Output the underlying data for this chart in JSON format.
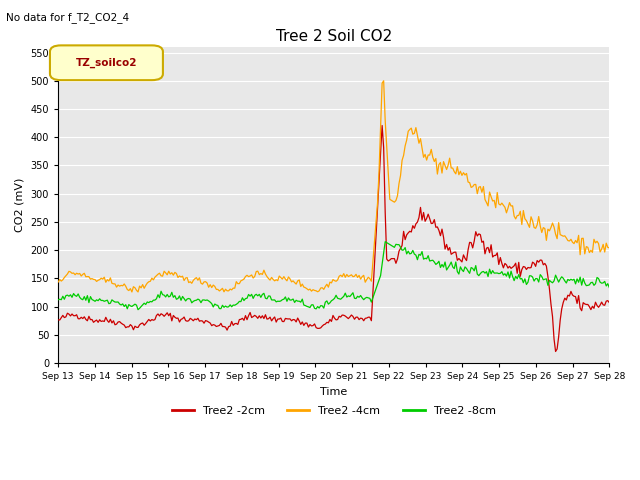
{
  "title": "Tree 2 Soil CO2",
  "subtitle": "No data for f_T2_CO2_4",
  "ylabel": "CO2 (mV)",
  "xlabel": "Time",
  "legend_box_label": "TZ_soilco2",
  "ylim": [
    0,
    560
  ],
  "yticks": [
    0,
    50,
    100,
    150,
    200,
    250,
    300,
    350,
    400,
    450,
    500,
    550
  ],
  "xtick_labels": [
    "Sep 13",
    "Sep 14",
    "Sep 15",
    "Sep 16",
    "Sep 17",
    "Sep 18",
    "Sep 19",
    "Sep 20",
    "Sep 21",
    "Sep 22",
    "Sep 23",
    "Sep 24",
    "Sep 25",
    "Sep 26",
    "Sep 27",
    "Sep 28"
  ],
  "colors": {
    "red": "#CC0000",
    "orange": "#FFA500",
    "green": "#00CC00",
    "box_bg": "#FFFFCC",
    "box_border": "#CCAA00",
    "box_text": "#990000",
    "plot_bg": "#E8E8E8",
    "grid": "#FFFFFF"
  },
  "legend": [
    {
      "label": "Tree2 -2cm",
      "color": "#CC0000"
    },
    {
      "label": "Tree2 -4cm",
      "color": "#FFA500"
    },
    {
      "label": "Tree2 -8cm",
      "color": "#00CC00"
    }
  ]
}
